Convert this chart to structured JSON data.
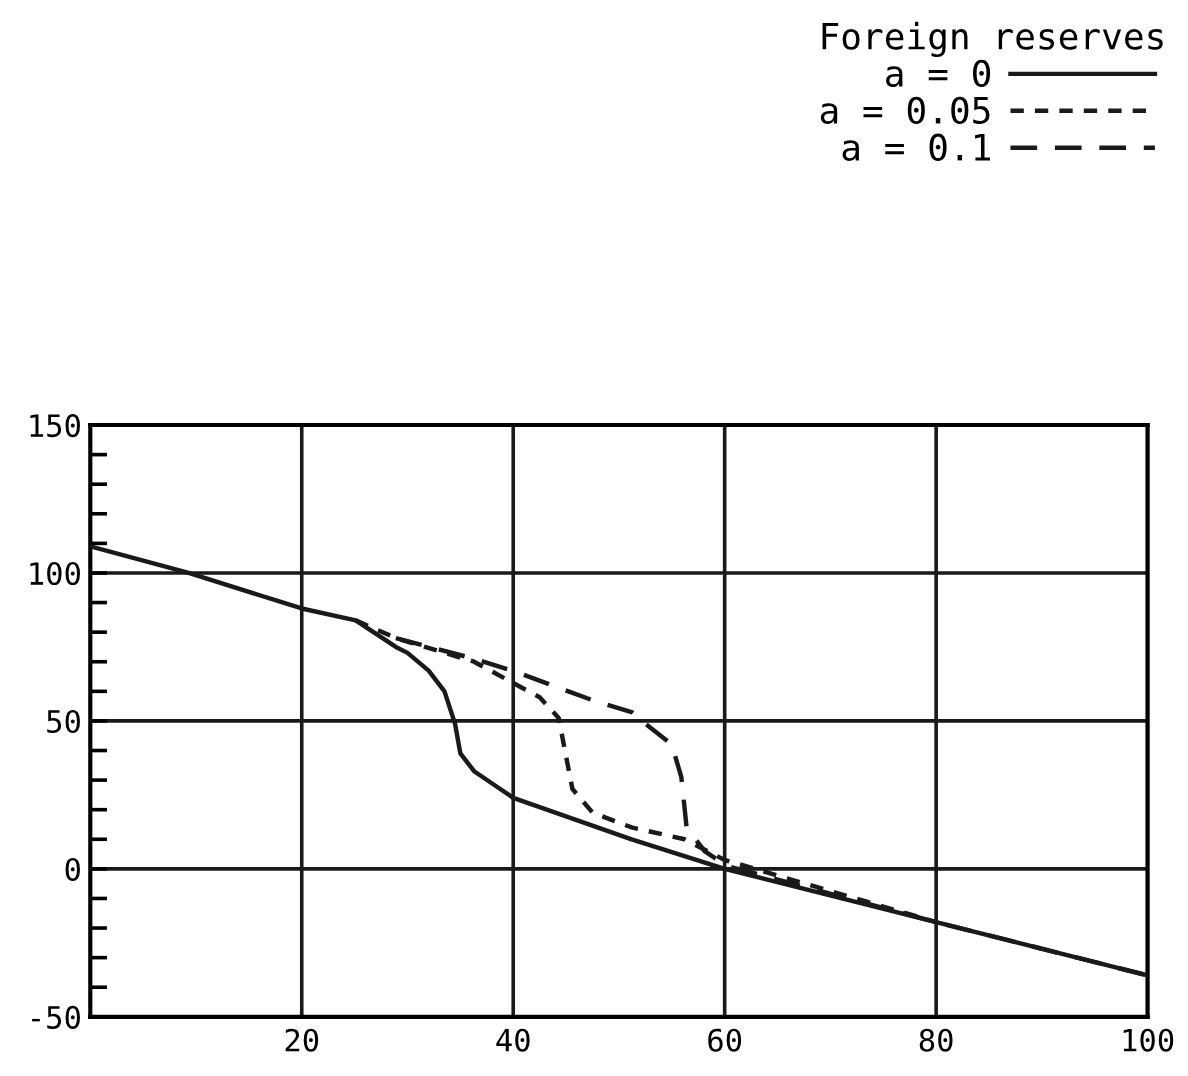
{
  "chart_data": {
    "type": "line",
    "legend_title": "Foreign reserves",
    "legend": "top right",
    "grid": true,
    "xlim": [
      0,
      100
    ],
    "xticks": [
      20,
      40,
      60,
      80,
      100
    ],
    "ylim": [
      -50,
      150
    ],
    "yticks": [
      -50,
      {
        "value": -40,
        "label": null
      },
      {
        "value": -30,
        "label": null
      },
      {
        "value": -20,
        "label": null
      },
      {
        "value": -10,
        "label": null
      },
      0,
      {
        "value": 10,
        "label": null
      },
      {
        "value": 20,
        "label": null
      },
      {
        "value": 30,
        "label": null
      },
      {
        "value": 40,
        "label": null
      },
      50,
      {
        "value": 60,
        "label": null
      },
      {
        "value": 70,
        "label": null
      },
      {
        "value": 80,
        "label": null
      },
      {
        "value": 90,
        "label": null
      },
      100,
      {
        "value": 110,
        "label": null
      },
      {
        "value": 120,
        "label": null
      },
      {
        "value": 130,
        "label": null
      },
      {
        "value": 140,
        "label": null
      },
      150
    ],
    "series": [
      {
        "name": "a = 0",
        "color": "#1a1a1a",
        "line_style": "solid",
        "x": [
          0,
          9.3,
          20,
          25.1,
          28.9,
          30,
          32,
          33.5,
          34.5,
          35,
          36.3,
          40,
          51.2,
          60,
          80,
          100
        ],
        "values": [
          109,
          100,
          88,
          84,
          75,
          73,
          67,
          60,
          49,
          39,
          33,
          24,
          10,
          0,
          -18,
          -36
        ]
      },
      {
        "name": "a = 0.05",
        "color": "#1a1a1a",
        "line_style": "dotted",
        "x": [
          25.1,
          28.9,
          32.6,
          36.3,
          39.9,
          42.5,
          44.3,
          45,
          45.6,
          47.5,
          51.2,
          56.2,
          60,
          80
        ],
        "values": [
          84,
          78,
          74,
          70,
          63,
          58,
          51,
          38,
          27,
          19,
          14,
          10,
          3,
          -18
        ]
      },
      {
        "name": "a = 0.1",
        "color": "#1a1a1a",
        "line_style": "dashed",
        "x": [
          28.9,
          36.3,
          39.9,
          47.5,
          51.2,
          51.8,
          55,
          55.9,
          56.4,
          58.1,
          60.2,
          80,
          100
        ],
        "values": [
          78,
          71,
          67,
          57,
          53,
          51,
          42,
          31,
          14,
          6,
          1,
          -18,
          -36
        ]
      }
    ]
  }
}
